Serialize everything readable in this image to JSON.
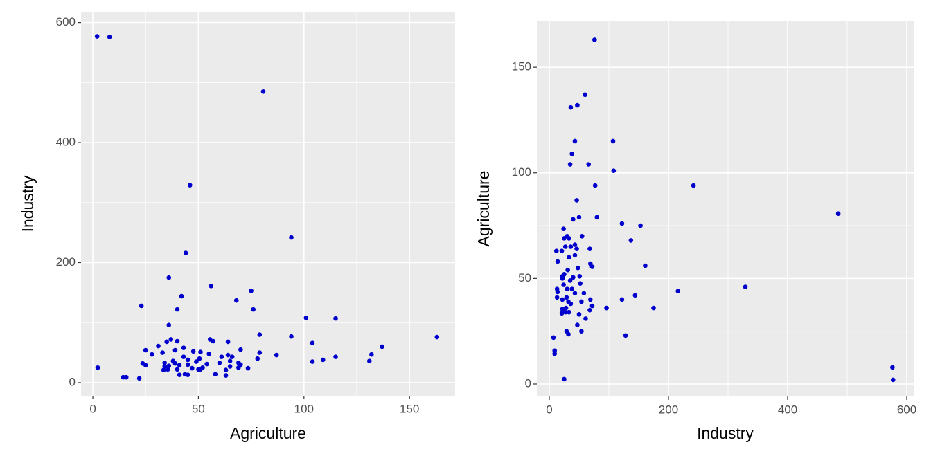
{
  "chart_data": [
    {
      "type": "scatter",
      "x_label": "Agriculture",
      "y_label": "Industry",
      "color": "#0000cd",
      "grid": true,
      "x": [
        2.3,
        2,
        7.9,
        80.7,
        46,
        94,
        44,
        36,
        56,
        75,
        23,
        42,
        68,
        40,
        76,
        101,
        115,
        36,
        79,
        94,
        163,
        37,
        55.5,
        57,
        35,
        40,
        64,
        104,
        137,
        31,
        25,
        39,
        43,
        47.6,
        51,
        70,
        33,
        28,
        55,
        79,
        87,
        132,
        64,
        66,
        115,
        109,
        78,
        61,
        43,
        45,
        50.5,
        38,
        23.6,
        34,
        49,
        39,
        54,
        60,
        69,
        65,
        70,
        104,
        131,
        25,
        34,
        36,
        41,
        45,
        52,
        65,
        69,
        73.5,
        33.5,
        35.5,
        40,
        47,
        50,
        51,
        63,
        58,
        63,
        41,
        43.6,
        45,
        14.4,
        15.8,
        22
      ],
      "y": [
        25,
        577,
        576,
        485,
        329,
        242,
        216,
        175,
        161,
        153,
        128,
        144,
        137,
        122,
        122,
        108,
        107,
        96,
        80,
        77,
        76,
        72,
        72,
        69,
        68,
        69,
        68,
        66,
        60,
        61,
        54,
        54,
        58,
        52,
        51,
        55,
        50,
        47,
        48,
        50,
        46,
        47,
        46,
        43,
        43,
        38,
        40,
        43,
        43,
        38,
        40,
        36,
        32,
        33,
        35,
        32,
        31,
        33,
        33,
        36,
        30,
        35,
        36,
        29,
        27,
        28,
        29,
        30,
        25,
        27,
        25,
        24,
        21,
        22,
        22,
        24,
        22,
        22,
        21,
        14,
        12,
        13,
        14,
        13,
        9,
        9,
        7
      ],
      "xlim": [
        -5.6,
        171.6
      ],
      "ylim": [
        -22,
        618
      ],
      "xticks": [
        0,
        50,
        100,
        150
      ],
      "yticks": [
        0,
        200,
        400,
        600
      ]
    },
    {
      "type": "scatter",
      "x_label": "Industry",
      "y_label": "Agriculture",
      "color": "#0000cd",
      "grid": true,
      "x": [
        25,
        577,
        576,
        485,
        329,
        242,
        216,
        175,
        161,
        153,
        128,
        144,
        137,
        122,
        122,
        108,
        107,
        96,
        80,
        77,
        76,
        72,
        72,
        69,
        68,
        69,
        68,
        66,
        60,
        61,
        54,
        54,
        58,
        52,
        51,
        55,
        50,
        47,
        48,
        50,
        46,
        47,
        46,
        43,
        43,
        38,
        40,
        43,
        43,
        38,
        40,
        36,
        32,
        33,
        35,
        32,
        31,
        33,
        33,
        36,
        30,
        35,
        36,
        29,
        27,
        28,
        29,
        30,
        25,
        27,
        25,
        24,
        21,
        22,
        22,
        24,
        22,
        22,
        21,
        14,
        12,
        13,
        14,
        13,
        9,
        9,
        7
      ],
      "y": [
        2.3,
        2,
        7.9,
        80.7,
        46,
        94,
        44,
        36,
        56,
        75,
        23,
        42,
        68,
        40,
        76,
        101,
        115,
        36,
        79,
        94,
        163,
        37,
        55.5,
        57,
        35,
        40,
        64,
        104,
        137,
        31,
        25,
        39,
        43,
        47.6,
        51,
        70,
        33,
        28,
        55,
        79,
        87,
        132,
        64,
        66,
        115,
        109,
        78,
        61,
        43,
        45,
        50.5,
        38,
        23.6,
        34,
        49,
        39,
        54,
        60,
        69,
        65,
        70,
        104,
        131,
        25,
        34,
        36,
        41,
        45,
        52,
        65,
        69,
        73.5,
        33.5,
        35.5,
        40,
        47,
        50,
        51,
        63,
        58,
        63,
        41,
        43.6,
        45,
        14.4,
        15.8,
        22
      ],
      "xlim": [
        -20.9,
        611.6
      ],
      "ylim": [
        -5.9,
        172
      ],
      "xticks": [
        0,
        200,
        400,
        600
      ],
      "yticks": [
        0,
        50,
        100,
        150
      ]
    }
  ]
}
